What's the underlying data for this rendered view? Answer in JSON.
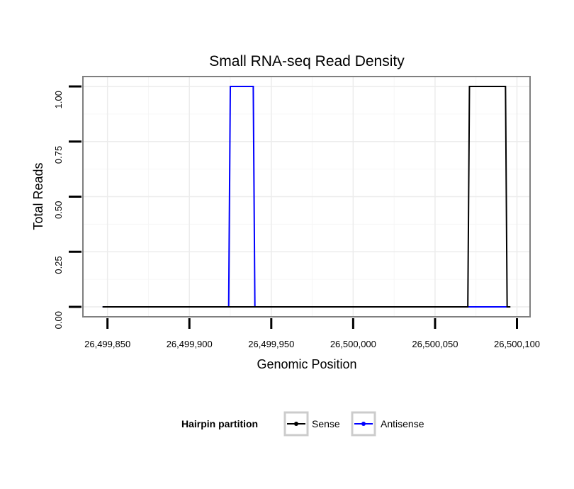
{
  "chart_data": {
    "type": "line",
    "title": "Small RNA-seq Read Density",
    "xlabel": "Genomic Position",
    "ylabel": "Total Reads",
    "xlim": [
      26499835,
      26500108
    ],
    "ylim": [
      -0.045,
      1.045
    ],
    "x_ticks": [
      26499850,
      26499900,
      26499950,
      26500000,
      26500050,
      26500100
    ],
    "x_tick_labels": [
      "26,499,850",
      "26,499,900",
      "26,499,950",
      "26,500,000",
      "26,500,050",
      "26,500,100"
    ],
    "y_ticks": [
      0,
      0.25,
      0.5,
      0.75,
      1
    ],
    "y_tick_labels": [
      "0.00",
      "0.25",
      "0.50",
      "0.75",
      "1.00"
    ],
    "grid": true,
    "legend": {
      "title": "Hairpin partition",
      "position": "bottom",
      "entries": [
        "Sense",
        "Antisense"
      ]
    },
    "series": [
      {
        "name": "Sense",
        "color": "#000000",
        "x": [
          26499847,
          26500070,
          26500071,
          26500093,
          26500094,
          26500096
        ],
        "values": [
          0,
          0,
          1,
          1,
          0,
          0
        ]
      },
      {
        "name": "Antisense",
        "color": "#0000ff",
        "x": [
          26499847,
          26499924,
          26499925,
          26499939,
          26499940,
          26500094
        ],
        "values": [
          0,
          0,
          1,
          1,
          0,
          0
        ]
      }
    ]
  }
}
